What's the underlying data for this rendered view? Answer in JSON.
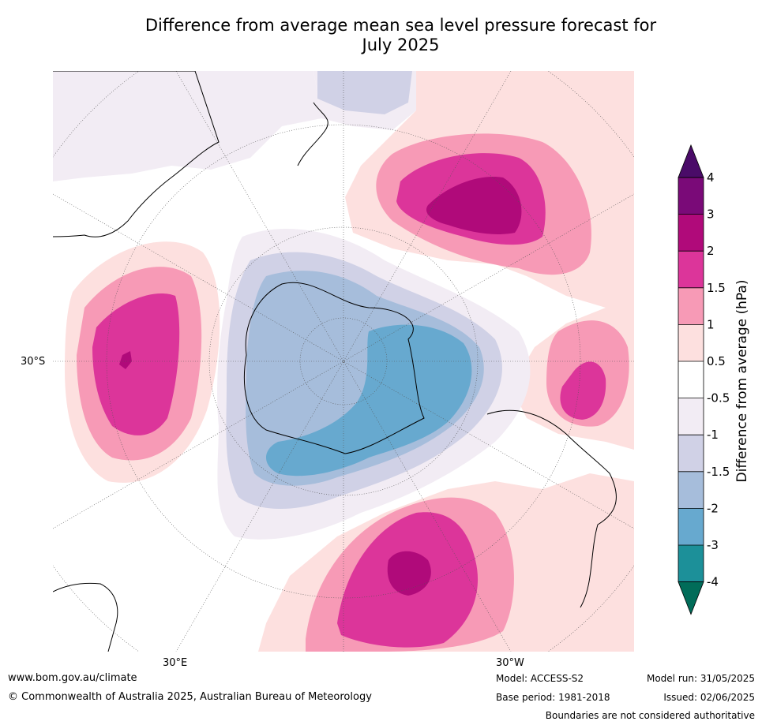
{
  "title_line1": "Difference from average mean sea level pressure forecast for",
  "title_line2": "July 2025",
  "map": {
    "projection": "south-polar-stereographic",
    "lat_label": "30°S",
    "lon_labels": [
      "30°E",
      "30°W"
    ],
    "colors": {
      "ocean": "#ffffff",
      "coast": "#000000",
      "grid": "#555555"
    }
  },
  "colorbar": {
    "label": "Difference from average (hPa)",
    "ticks": [
      "4",
      "3",
      "2",
      "1.5",
      "1",
      "0.5",
      "-0.5",
      "-1",
      "-1.5",
      "-2",
      "-3",
      "-4"
    ],
    "bands": [
      {
        "range": "> 4",
        "color": "#4a0b68"
      },
      {
        "range": "3 to 4",
        "color": "#7a0a78"
      },
      {
        "range": "2 to 3",
        "color": "#b00a7a"
      },
      {
        "range": "1.5 to 2",
        "color": "#dc359a"
      },
      {
        "range": "1 to 1.5",
        "color": "#f79ab6"
      },
      {
        "range": "0.5 to 1",
        "color": "#fde0df"
      },
      {
        "range": "-0.5 to 0.5",
        "color": "#ffffff"
      },
      {
        "range": "-1 to -0.5",
        "color": "#f2ecf4"
      },
      {
        "range": "-1.5 to -1",
        "color": "#d0d1e6"
      },
      {
        "range": "-2 to -1.5",
        "color": "#a6bddb"
      },
      {
        "range": "-3 to -2",
        "color": "#67a9cf"
      },
      {
        "range": "-4 to -3",
        "color": "#1c9099"
      },
      {
        "range": "< -4",
        "color": "#016c59"
      }
    ]
  },
  "footer": {
    "website": "www.bom.gov.au/climate",
    "copyright": "© Commonwealth of Australia 2025, Australian Bureau of Meteorology",
    "model": "Model: ACCESS-S2",
    "base_period": "Base period: 1981-2018",
    "model_run": "Model run: 31/05/2025",
    "issued": "Issued: 02/06/2025",
    "disclaimer": "Boundaries are not considered authoritative"
  }
}
